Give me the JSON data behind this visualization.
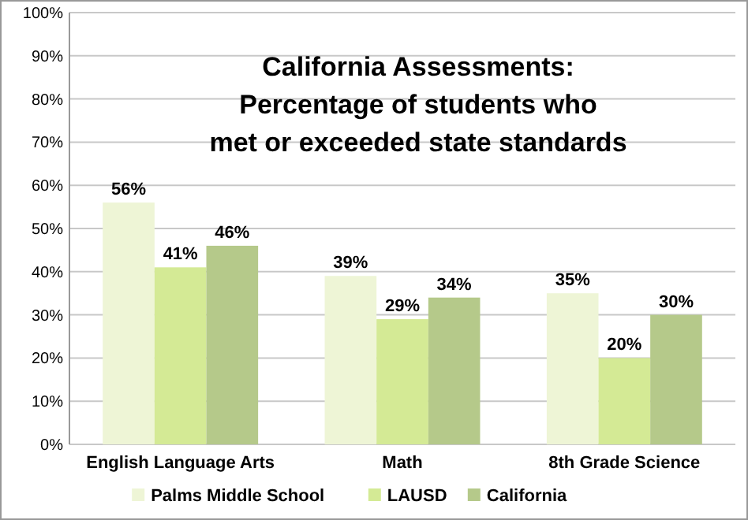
{
  "chart_data": {
    "type": "bar",
    "title": "California Assessments:\nPercentage of students who\nmet or exceeded state standards",
    "categories": [
      "English Language Arts",
      "Math",
      "8th Grade Science"
    ],
    "series": [
      {
        "name": "Palms Middle School",
        "color": "#eef5d6",
        "values": [
          56,
          39,
          35
        ],
        "value_labels": [
          "56%",
          "39%",
          "35%"
        ]
      },
      {
        "name": "LAUSD",
        "color": "#d4ea95",
        "values": [
          41,
          29,
          20
        ],
        "value_labels": [
          "41%",
          "29%",
          "20%"
        ]
      },
      {
        "name": "California",
        "color": "#b5c98a",
        "values": [
          46,
          34,
          30
        ],
        "value_labels": [
          "46%",
          "34%",
          "30%"
        ]
      }
    ],
    "ylim": [
      0,
      100
    ],
    "yticks": [
      {
        "value": 0,
        "label": "0%"
      },
      {
        "value": 10,
        "label": "10%"
      },
      {
        "value": 20,
        "label": "20%"
      },
      {
        "value": 30,
        "label": "30%"
      },
      {
        "value": 40,
        "label": "40%"
      },
      {
        "value": 50,
        "label": "50%"
      },
      {
        "value": 60,
        "label": "60%"
      },
      {
        "value": 70,
        "label": "70%"
      },
      {
        "value": 80,
        "label": "80%"
      },
      {
        "value": 90,
        "label": "90%"
      },
      {
        "value": 100,
        "label": "100%"
      }
    ],
    "grid": "y",
    "legend": "bottom"
  }
}
